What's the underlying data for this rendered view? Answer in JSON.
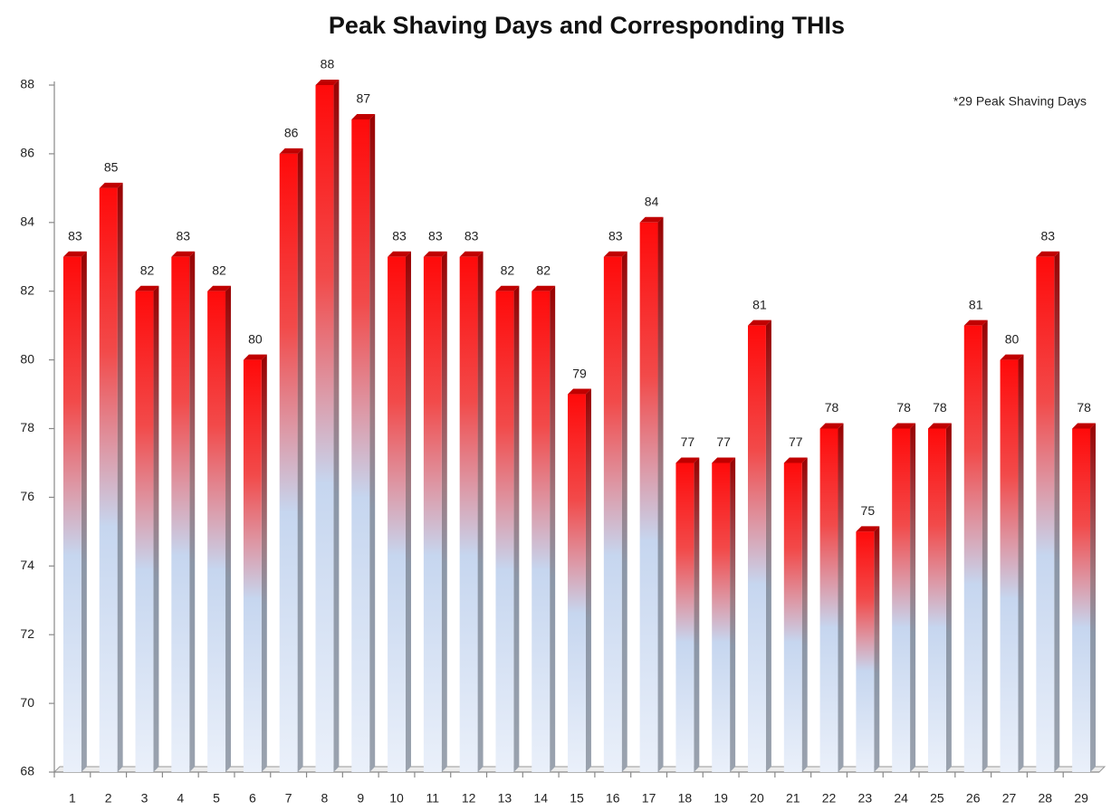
{
  "chart_data": {
    "type": "bar",
    "title": "Peak Shaving Days and Corresponding THIs",
    "annotation": "*29 Peak Shaving Days",
    "categories": [
      "1",
      "2",
      "3",
      "4",
      "5",
      "6",
      "7",
      "8",
      "9",
      "10",
      "11",
      "12",
      "13",
      "14",
      "15",
      "16",
      "17",
      "18",
      "19",
      "20",
      "21",
      "22",
      "23",
      "24",
      "25",
      "26",
      "27",
      "28",
      "29"
    ],
    "values": [
      83,
      85,
      82,
      83,
      82,
      80,
      86,
      88,
      87,
      83,
      83,
      83,
      82,
      82,
      79,
      83,
      84,
      77,
      77,
      81,
      77,
      78,
      75,
      78,
      78,
      81,
      80,
      83,
      78
    ],
    "color": "#ff0000",
    "ylim": [
      68,
      88
    ],
    "yticks": [
      68,
      70,
      72,
      74,
      76,
      78,
      80,
      82,
      84,
      86,
      88
    ],
    "grid": false
  }
}
